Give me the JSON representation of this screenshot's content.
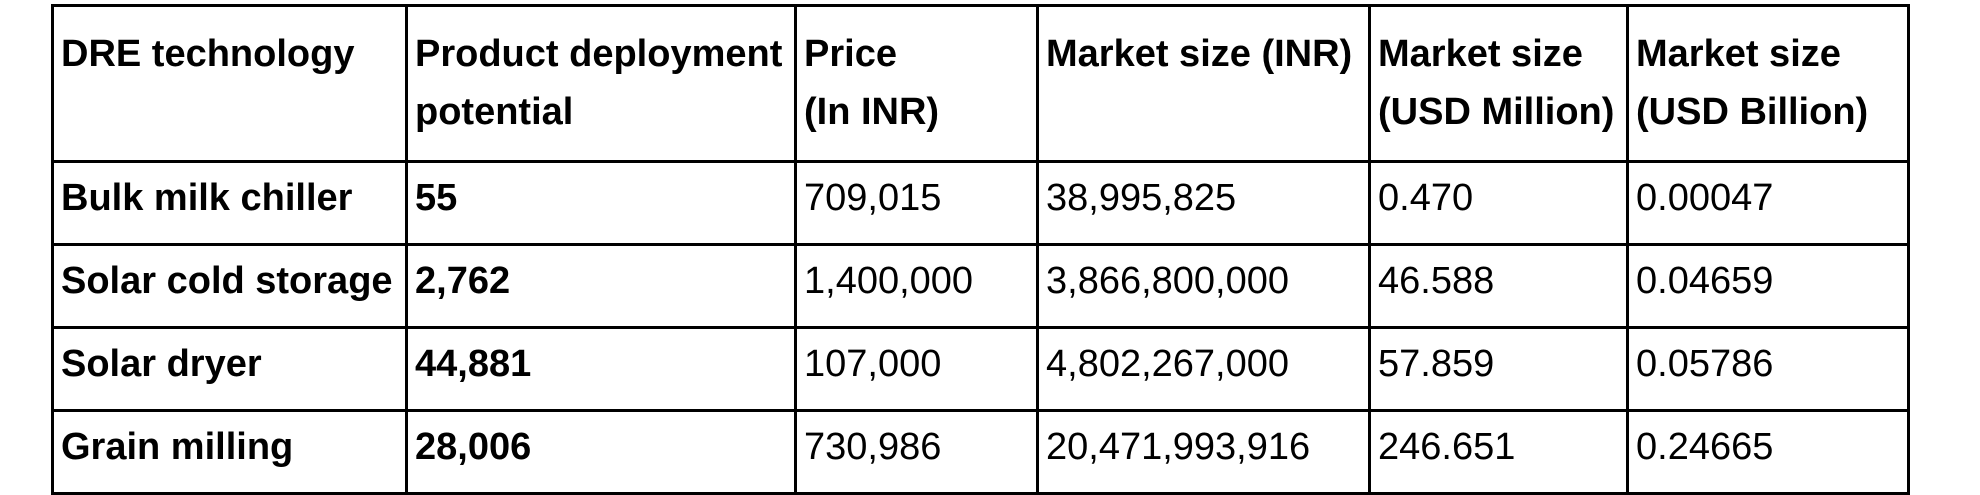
{
  "table": {
    "headers": [
      {
        "lines": [
          "DRE technology"
        ]
      },
      {
        "lines": [
          "Product deployment",
          "potential"
        ]
      },
      {
        "lines": [
          "Price",
          "(In INR)"
        ]
      },
      {
        "lines": [
          "Market size (INR)"
        ]
      },
      {
        "lines": [
          "Market size",
          "(USD Million)"
        ]
      },
      {
        "lines": [
          "Market size",
          "(USD Billion)"
        ]
      }
    ],
    "rows": [
      [
        "Bulk milk chiller",
        "55",
        "709,015",
        "38,995,825",
        "0.470",
        "0.00047"
      ],
      [
        "Solar cold storage",
        "2,762",
        "1,400,000",
        "3,866,800,000",
        "46.588",
        "0.04659"
      ],
      [
        "Solar dryer",
        "44,881",
        "107,000",
        "4,802,267,000",
        "57.859",
        "0.05786"
      ],
      [
        "Grain milling",
        "28,006",
        "730,986",
        "20,471,993,916",
        "246.651",
        "0.24665"
      ]
    ]
  }
}
